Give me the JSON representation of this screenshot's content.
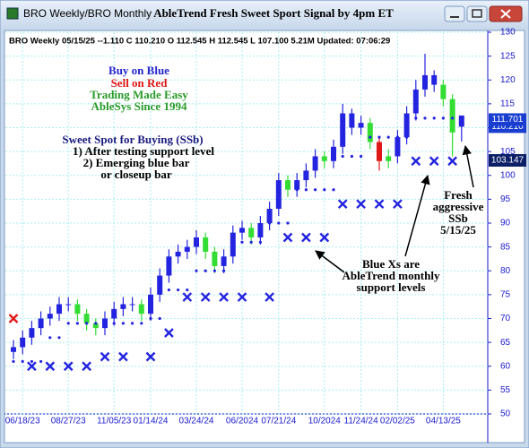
{
  "window_title": "BRO  Weekly/BRO  Monthly",
  "chart_data": {
    "type": "candlestick",
    "title": "AbleTrend Fresh Sweet Sport Signal by 4pm ET",
    "header": "BRO  Weekly 05/15/25 --1.110 C 110.210 O 112.545 H 112.545 L 107.100 5.21M Updated: 07:06:29",
    "categories": [
      null,
      "06/18/23",
      null,
      null,
      null,
      null,
      "08/27/23",
      null,
      null,
      null,
      null,
      "11/05/23",
      null,
      null,
      null,
      "01/14/24",
      null,
      null,
      null,
      null,
      "03/24/24",
      null,
      null,
      null,
      null,
      "06/2024",
      null,
      null,
      null,
      "07/21/24",
      null,
      null,
      null,
      null,
      "10/2024",
      null,
      null,
      null,
      "11/24/24",
      null,
      null,
      null,
      "02/02/25",
      null,
      null,
      null,
      null,
      "04/13/25",
      null,
      null
    ],
    "open": [
      63,
      64,
      66,
      68,
      70,
      71,
      73,
      73,
      71,
      69,
      68,
      70,
      72,
      73,
      73,
      71,
      75,
      79,
      83,
      84,
      85,
      87,
      84,
      81,
      83,
      88,
      89,
      87,
      90,
      93,
      99,
      97,
      99,
      101,
      104,
      103,
      106,
      113,
      110,
      111,
      107,
      103,
      104,
      108,
      113,
      118,
      121,
      119,
      116,
      112.545
    ],
    "high": [
      65.5,
      67.5,
      69.5,
      71.5,
      72.5,
      74.5,
      74.5,
      74,
      72,
      70,
      71.5,
      73.5,
      74.5,
      74.5,
      74,
      76.5,
      80.5,
      84.5,
      85.5,
      86.5,
      88.5,
      88,
      85,
      84.5,
      89.5,
      90.5,
      90,
      91.5,
      94.5,
      100.5,
      100,
      100.5,
      102.5,
      105.5,
      105,
      107.5,
      115,
      114,
      112.5,
      112,
      108,
      105.5,
      109.5,
      114.5,
      120,
      125.5,
      122,
      120,
      117,
      112.545
    ],
    "low": [
      61.5,
      62.5,
      64.5,
      66.5,
      68.5,
      69.5,
      71.5,
      69.5,
      67.5,
      66.5,
      66.5,
      68.5,
      70.5,
      71.5,
      69.5,
      69.5,
      73.5,
      77.5,
      81.5,
      82.5,
      83.5,
      82.5,
      79.5,
      79.5,
      81.5,
      86.5,
      85.5,
      85.5,
      88.5,
      91.5,
      95.5,
      95.5,
      97.5,
      99.5,
      101.5,
      101.5,
      104.5,
      108.5,
      108.5,
      105.5,
      101,
      101.5,
      102.5,
      106.5,
      111.5,
      116.5,
      117.5,
      114.5,
      104,
      107.1
    ],
    "close": [
      64,
      66,
      68,
      70,
      71,
      73,
      73,
      71,
      69,
      68,
      70,
      72,
      73,
      73,
      71,
      75,
      79,
      83,
      84,
      85,
      87,
      84,
      81,
      83,
      88,
      89,
      87,
      90,
      93,
      99,
      97,
      99,
      101,
      104,
      103,
      106,
      113,
      110,
      111,
      107,
      103,
      104,
      108,
      113,
      118,
      121,
      119,
      116,
      109,
      110.21
    ],
    "colors": [
      "#2424e0",
      "#2424e0",
      "#2424e0",
      "#2424e0",
      "#2424e0",
      "#2424e0",
      "#2424e0",
      "#33dd33",
      "#33dd33",
      "#33dd33",
      "#2424e0",
      "#2424e0",
      "#2424e0",
      "#2424e0",
      "#33dd33",
      "#2424e0",
      "#2424e0",
      "#2424e0",
      "#2424e0",
      "#2424e0",
      "#2424e0",
      "#33dd33",
      "#33dd33",
      "#2424e0",
      "#2424e0",
      "#2424e0",
      "#33dd33",
      "#2424e0",
      "#2424e0",
      "#2424e0",
      "#33dd33",
      "#2424e0",
      "#2424e0",
      "#2424e0",
      "#33dd33",
      "#2424e0",
      "#2424e0",
      "#2424e0",
      "#2424e0",
      "#33dd33",
      "#e01818",
      "#33dd33",
      "#2424e0",
      "#2424e0",
      "#2424e0",
      "#2424e0",
      "#2424e0",
      "#33dd33",
      "#33dd33",
      "#2424e0"
    ],
    "weekly_support": {
      "color": "#2424e0",
      "values": [
        61,
        61,
        61,
        61,
        66,
        66,
        69,
        69,
        69,
        69,
        69,
        69,
        69,
        69,
        69,
        70,
        70,
        76,
        76,
        76,
        80,
        80,
        80,
        80,
        86,
        86,
        86,
        86,
        90,
        90,
        90,
        97,
        97,
        97,
        97,
        97,
        104,
        104,
        104,
        108,
        108,
        108,
        108,
        108,
        112,
        112,
        112,
        112,
        112,
        112
      ]
    },
    "monthly_support": {
      "color": "#2424e0",
      "values": [
        null,
        null,
        60,
        null,
        60,
        null,
        60,
        null,
        60,
        null,
        62,
        null,
        62,
        null,
        null,
        62,
        null,
        67,
        null,
        74.5,
        null,
        74.5,
        null,
        74.5,
        null,
        74.5,
        null,
        null,
        74.5,
        null,
        87,
        null,
        87,
        null,
        87,
        null,
        94,
        null,
        94,
        null,
        94,
        null,
        94,
        null,
        103,
        null,
        103,
        null,
        103,
        null
      ]
    },
    "monthly_sell": {
      "color": "#e01818",
      "values": [
        70,
        null,
        null,
        null,
        null,
        null,
        null,
        null,
        null,
        null,
        null,
        null,
        null,
        null,
        null,
        null,
        null,
        null,
        null,
        null,
        null,
        null,
        null,
        null,
        null,
        null,
        null,
        null,
        null,
        null,
        null,
        null,
        null,
        null,
        null,
        null,
        null,
        null,
        null,
        null,
        null,
        null,
        null,
        null,
        null,
        null,
        null,
        null,
        null,
        null
      ]
    },
    "price_labels": [
      {
        "value": 110.21,
        "label": "110.210",
        "color": "#1a3fd0"
      },
      {
        "value": 111.701,
        "label": "111.701",
        "color": "#1a3fd0"
      },
      {
        "value": 103.147,
        "label": "103.147",
        "color": "#0d1f66"
      }
    ],
    "ylim": [
      50,
      130
    ],
    "yticks": [
      50,
      55,
      60,
      65,
      70,
      75,
      80,
      85,
      90,
      95,
      100,
      105,
      110,
      115,
      120,
      125,
      130
    ],
    "grid": true,
    "notes": {
      "legend": [
        "Buy on Blue",
        "Sell on Red",
        "Trading Made Easy",
        "AbleSys Since 1994"
      ],
      "ssb": [
        "Sweet Spot for Buying (SSb)",
        "1) After testing support level",
        "2) Emerging blue bar",
        "or closeup bar"
      ],
      "fresh": [
        "Fresh",
        "aggressive",
        "SSb",
        "5/15/25"
      ],
      "blue_x": [
        "Blue Xs are",
        "AbleTrend monthly",
        "support levels"
      ]
    }
  }
}
